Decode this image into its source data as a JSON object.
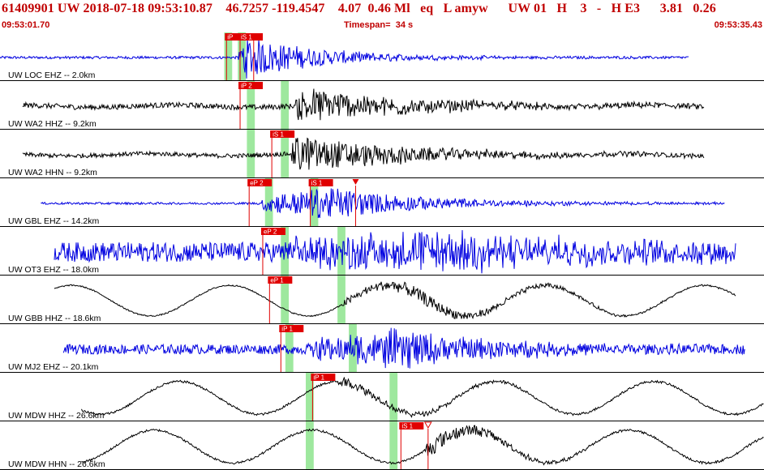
{
  "header": {
    "event_line": "61409901 UW 2018-07-18 09:53:10.87    46.7257 -119.4547    4.07  0.46 Ml   eq   L amyw      UW 01   H    3   -   H E3      3.81   0.26",
    "start_time": "09:53:01.70",
    "timespan_label": "Timespan=",
    "timespan_value": "34 s",
    "end_time": "09:53:35.43"
  },
  "colors": {
    "header_text": "#c00000",
    "pick_box": "#e00000",
    "pick_line": "#e00000",
    "window": "#9ee89e",
    "trace_blue": "#0000e0",
    "trace_black": "#000000",
    "separator": "#000000"
  },
  "chart_data": {
    "type": "line",
    "x_units": "s",
    "x_range": [
      0,
      33.73
    ],
    "traces": [
      {
        "label": "UW LOC EHZ -- 2.0km",
        "color": "blue",
        "data_start": 0.0,
        "data_end": 30.4,
        "signal_start": 10.5,
        "max_amp_time": 10.9,
        "noise": 0.06,
        "signal_amp": 0.95,
        "decay": 3.5,
        "long_period": 0.0,
        "picks": [
          {
            "label": "iP",
            "time": 10.0,
            "box": true
          },
          {
            "label": "iS 1",
            "time": 10.6,
            "box": true
          },
          {
            "label": "",
            "time": 11.2,
            "box": false,
            "marker": "triangle-down"
          }
        ],
        "windows": [
          {
            "time": 9.9,
            "width": 0.35
          },
          {
            "time": 10.5,
            "width": 0.35
          }
        ]
      },
      {
        "label": "UW WA2 HHZ -- 9.2km",
        "color": "black",
        "data_start": 1.0,
        "data_end": 31.1,
        "signal_start": 13.0,
        "max_amp_time": 13.4,
        "noise": 0.12,
        "signal_amp": 0.8,
        "decay": 5.0,
        "long_period": 0.05,
        "picks": [
          {
            "label": "iP 2",
            "time": 10.6,
            "box": true
          }
        ],
        "windows": [
          {
            "time": 10.9,
            "width": 0.35
          },
          {
            "time": 12.4,
            "width": 0.35
          }
        ]
      },
      {
        "label": "UW WA2 HHN -- 9.2km",
        "color": "black",
        "data_start": 1.0,
        "data_end": 31.1,
        "signal_start": 12.8,
        "max_amp_time": 13.0,
        "noise": 0.1,
        "signal_amp": 0.9,
        "decay": 5.0,
        "long_period": 0.05,
        "picks": [
          {
            "label": "iS 1",
            "time": 12.0,
            "box": true
          }
        ],
        "windows": [
          {
            "time": 10.9,
            "width": 0.35
          },
          {
            "time": 12.4,
            "width": 0.35
          }
        ]
      },
      {
        "label": "UW GBL EHZ -- 14.2km",
        "color": "blue",
        "data_start": 1.8,
        "data_end": 32.0,
        "signal_start": 11.5,
        "max_amp_time": 14.5,
        "noise": 0.05,
        "signal_amp": 0.75,
        "decay": 4.5,
        "long_period": 0.0,
        "picks": [
          {
            "label": "eP 2",
            "time": 11.0,
            "box": true
          },
          {
            "label": "iS 1",
            "time": 13.7,
            "box": true
          },
          {
            "label": "",
            "time": 15.7,
            "box": false,
            "marker": "triangle-down"
          }
        ],
        "windows": [
          {
            "time": 11.7,
            "width": 0.35
          },
          {
            "time": 13.7,
            "width": 0.35
          }
        ]
      },
      {
        "label": "UW OT3 EHZ -- 18.0km",
        "color": "blue",
        "data_start": 2.4,
        "data_end": 32.5,
        "signal_start": 12.4,
        "max_amp_time": 18.8,
        "noise": 0.45,
        "signal_amp": 0.75,
        "decay": 8.0,
        "long_period": 0.0,
        "picks": [
          {
            "label": "eP 2",
            "time": 11.6,
            "box": true
          }
        ],
        "windows": [
          {
            "time": 12.4,
            "width": 0.35
          },
          {
            "time": 14.9,
            "width": 0.35
          }
        ]
      },
      {
        "label": "UW GBB HHZ -- 18.6km",
        "color": "black",
        "data_start": 2.4,
        "data_end": 32.5,
        "signal_start": 15.0,
        "max_amp_time": 18.4,
        "noise": 0.03,
        "signal_amp": 0.3,
        "decay": 5.0,
        "long_period": 0.7,
        "picks": [
          {
            "label": "eP 1",
            "time": 11.9,
            "box": true
          }
        ],
        "windows": [
          {
            "time": 12.4,
            "width": 0.35
          },
          {
            "time": 14.9,
            "width": 0.35
          }
        ]
      },
      {
        "label": "UW MJ2 EHZ -- 20.1km",
        "color": "blue",
        "data_start": 2.8,
        "data_end": 32.9,
        "signal_start": 13.5,
        "max_amp_time": 17.6,
        "noise": 0.22,
        "signal_amp": 0.85,
        "decay": 4.5,
        "long_period": 0.0,
        "picks": [
          {
            "label": "iP 1",
            "time": 12.4,
            "box": true
          }
        ],
        "windows": [
          {
            "time": 12.6,
            "width": 0.35
          },
          {
            "time": 15.4,
            "width": 0.35
          }
        ]
      },
      {
        "label": "UW MDW HHZ -- 26.6km",
        "color": "black",
        "data_start": 3.6,
        "data_end": 33.73,
        "signal_start": 14.7,
        "max_amp_time": 14.8,
        "noise": 0.05,
        "signal_amp": 0.25,
        "decay": 4.0,
        "long_period": 0.75,
        "picks": [
          {
            "label": "iP 1",
            "time": 13.8,
            "box": true
          }
        ],
        "windows": [
          {
            "time": 13.5,
            "width": 0.35
          },
          {
            "time": 17.2,
            "width": 0.35
          }
        ]
      },
      {
        "label": "UW MDW HHN -- 26.6km",
        "color": "black",
        "data_start": 3.6,
        "data_end": 33.73,
        "signal_start": 18.7,
        "max_amp_time": 18.9,
        "noise": 0.05,
        "signal_amp": 0.45,
        "decay": 3.0,
        "long_period": 0.75,
        "picks": [
          {
            "label": "iS 1",
            "time": 17.7,
            "box": true
          },
          {
            "label": "",
            "time": 18.9,
            "box": false,
            "marker": "triangle-down-open"
          }
        ],
        "windows": [
          {
            "time": 13.5,
            "width": 0.35
          },
          {
            "time": 17.2,
            "width": 0.35
          }
        ]
      }
    ]
  }
}
